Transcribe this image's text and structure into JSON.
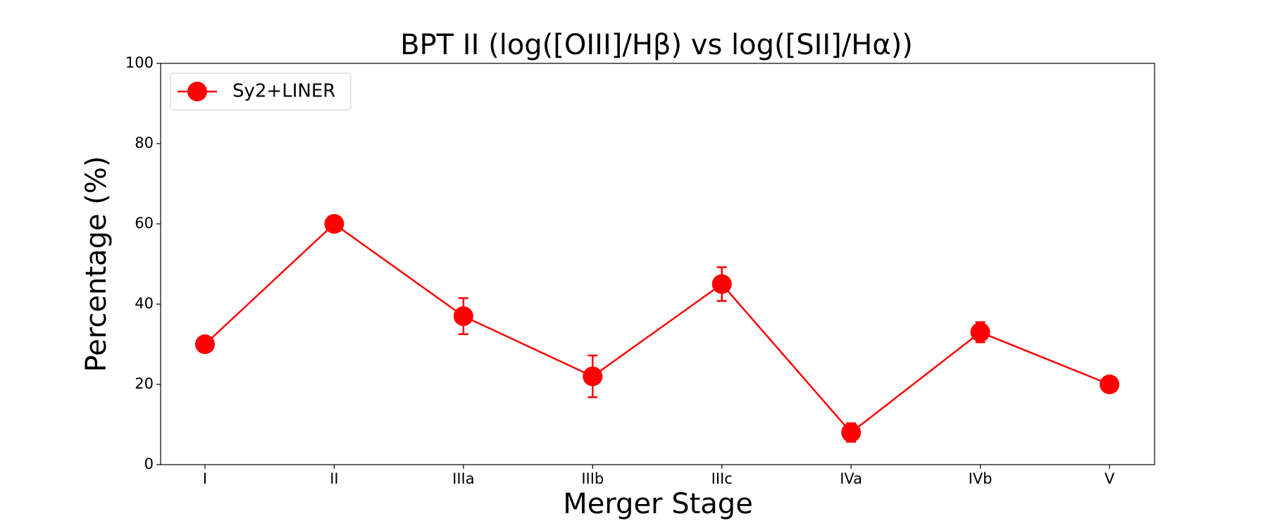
{
  "chart_data": {
    "type": "line",
    "title": "BPT II (log([OIII]/Hβ) vs log([SII]/Hα))",
    "x_label": "Merger Stage",
    "y_label": "Percentage (%)",
    "categories": [
      "I",
      "II",
      "IIIa",
      "IIIb",
      "IIIc",
      "IVa",
      "IVb",
      "V"
    ],
    "series": [
      {
        "name": "Sy2+LINER",
        "color": "#ff0000",
        "values": [
          30,
          60,
          37,
          22,
          45,
          8,
          33,
          20
        ],
        "errors": [
          null,
          null,
          4.5,
          5.2,
          4.2,
          2.3,
          2.5,
          null
        ]
      }
    ],
    "ylim": [
      0,
      100
    ],
    "yticks": [
      0,
      20,
      40,
      60,
      80,
      100
    ],
    "legend": "upper left"
  }
}
